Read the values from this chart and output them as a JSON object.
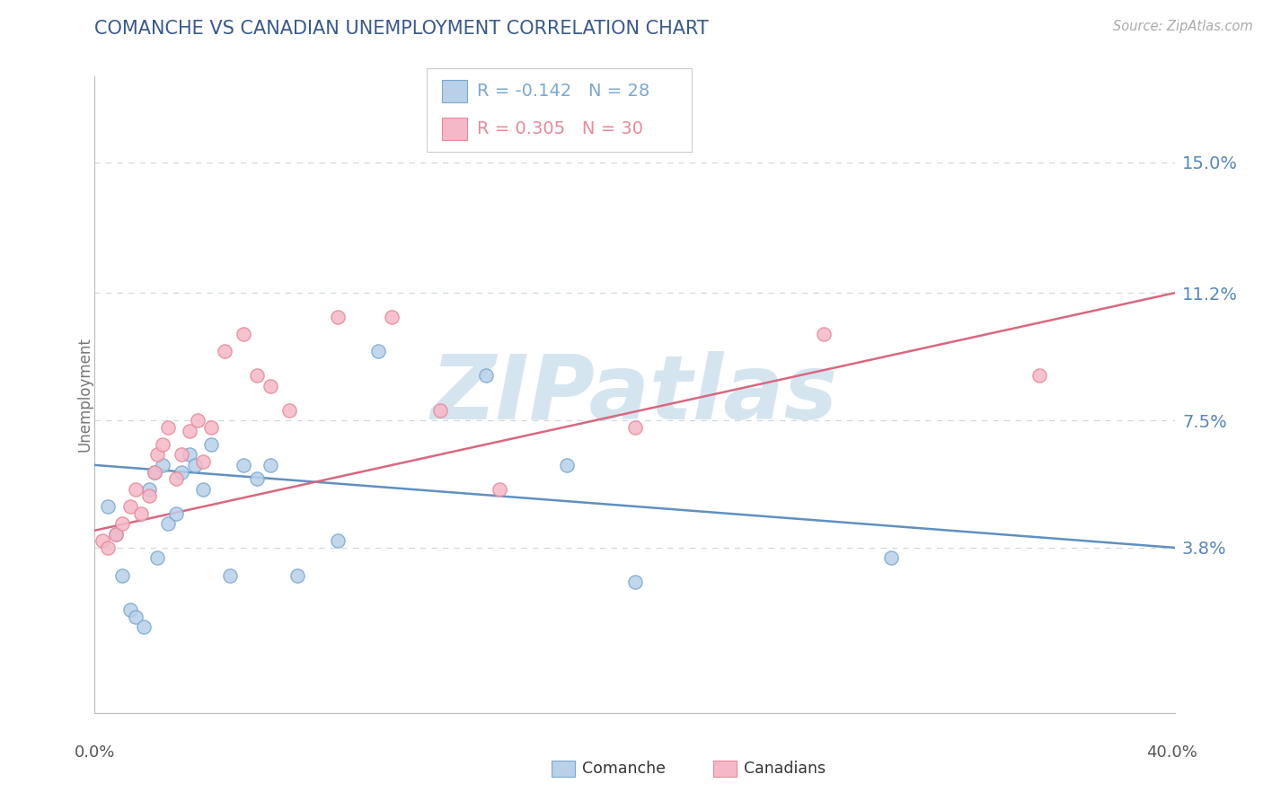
{
  "title": "COMANCHE VS CANADIAN UNEMPLOYMENT CORRELATION CHART",
  "source": "Source: ZipAtlas.com",
  "ylabel": "Unemployment",
  "xmin": 0.0,
  "xmax": 0.4,
  "ymin": -0.01,
  "ymax": 0.175,
  "yticks": [
    0.038,
    0.075,
    0.112,
    0.15
  ],
  "ytick_labels": [
    "3.8%",
    "7.5%",
    "11.2%",
    "15.0%"
  ],
  "grid_color": "#d0d8e0",
  "background_color": "#ffffff",
  "comanche_fill": "#b8d0e8",
  "canadians_fill": "#f5b8c8",
  "comanche_edge": "#7aa8d0",
  "canadians_edge": "#e88898",
  "comanche_line_color": "#6090c0",
  "canadians_line_color": "#d86880",
  "watermark_text": "ZIPatlas",
  "watermark_color": "#d5e5f0",
  "title_color": "#3a5a8c",
  "source_color": "#aaaaaa",
  "label_color": "#5588bb",
  "legend_comanche_R": "-0.142",
  "legend_comanche_N": "28",
  "legend_canadians_R": "0.305",
  "legend_canadians_N": "30",
  "comanche_trend_x": [
    0.0,
    0.4
  ],
  "comanche_trend_y": [
    0.062,
    0.038
  ],
  "canadians_trend_x": [
    0.0,
    0.4
  ],
  "canadians_trend_y": [
    0.043,
    0.112
  ],
  "comanche_x": [
    0.005,
    0.008,
    0.01,
    0.013,
    0.015,
    0.018,
    0.02,
    0.022,
    0.023,
    0.025,
    0.027,
    0.03,
    0.032,
    0.035,
    0.037,
    0.04,
    0.043,
    0.05,
    0.055,
    0.06,
    0.065,
    0.075,
    0.09,
    0.105,
    0.145,
    0.175,
    0.2,
    0.295
  ],
  "comanche_y": [
    0.05,
    0.042,
    0.03,
    0.02,
    0.018,
    0.015,
    0.055,
    0.06,
    0.035,
    0.062,
    0.045,
    0.048,
    0.06,
    0.065,
    0.062,
    0.055,
    0.068,
    0.03,
    0.062,
    0.058,
    0.062,
    0.03,
    0.04,
    0.095,
    0.088,
    0.062,
    0.028,
    0.035
  ],
  "canadians_x": [
    0.003,
    0.005,
    0.008,
    0.01,
    0.013,
    0.015,
    0.017,
    0.02,
    0.022,
    0.023,
    0.025,
    0.027,
    0.03,
    0.032,
    0.035,
    0.038,
    0.04,
    0.043,
    0.048,
    0.055,
    0.06,
    0.065,
    0.072,
    0.09,
    0.11,
    0.128,
    0.15,
    0.2,
    0.27,
    0.35
  ],
  "canadians_y": [
    0.04,
    0.038,
    0.042,
    0.045,
    0.05,
    0.055,
    0.048,
    0.053,
    0.06,
    0.065,
    0.068,
    0.073,
    0.058,
    0.065,
    0.072,
    0.075,
    0.063,
    0.073,
    0.095,
    0.1,
    0.088,
    0.085,
    0.078,
    0.105,
    0.105,
    0.078,
    0.055,
    0.073,
    0.1,
    0.088
  ]
}
